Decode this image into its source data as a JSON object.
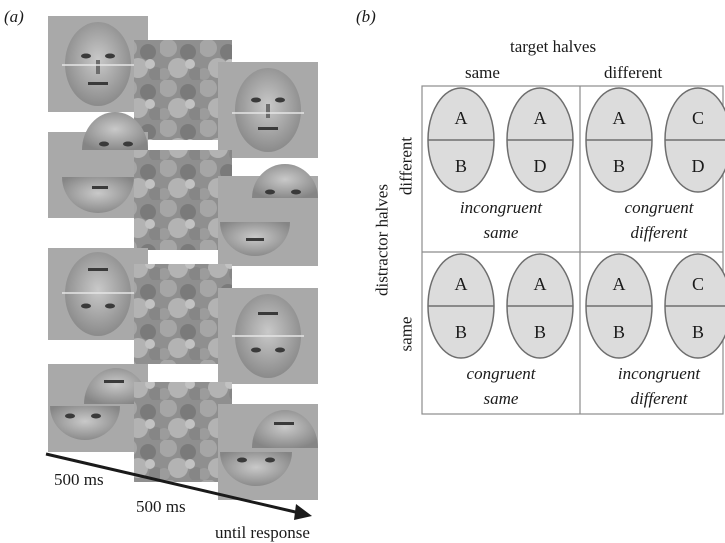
{
  "panel_a": {
    "label": "(a)",
    "timing": {
      "fixation_1": "500 ms",
      "fixation_2": "500 ms",
      "response": "until response"
    }
  },
  "panel_b": {
    "label": "(b)",
    "top_header": "target halves",
    "col_headers": [
      "same",
      "different"
    ],
    "side_header": "distractor halves",
    "row_headers": [
      "different",
      "same"
    ],
    "cells": [
      {
        "caption_1": "incongruent",
        "caption_2": "same",
        "left": {
          "top": "A",
          "bottom": "B"
        },
        "right": {
          "top": "A",
          "bottom": "D"
        }
      },
      {
        "caption_1": "congruent",
        "caption_2": "different",
        "left": {
          "top": "A",
          "bottom": "B"
        },
        "right": {
          "top": "C",
          "bottom": "D"
        }
      },
      {
        "caption_1": "congruent",
        "caption_2": "same",
        "left": {
          "top": "A",
          "bottom": "B"
        },
        "right": {
          "top": "A",
          "bottom": "B"
        }
      },
      {
        "caption_1": "incongruent",
        "caption_2": "different",
        "left": {
          "top": "A",
          "bottom": "B"
        },
        "right": {
          "top": "C",
          "bottom": "B"
        }
      }
    ]
  },
  "colors": {
    "face_bg": "#a9a9a9",
    "oval_fill": "#dcdcdc",
    "grid_line": "#8c8c8c"
  }
}
